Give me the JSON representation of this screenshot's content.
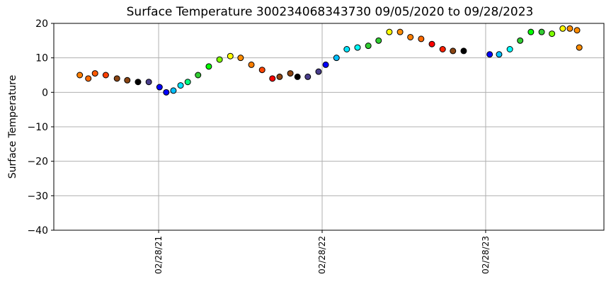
{
  "chart_data": {
    "type": "scatter",
    "title": "Surface Temperature 300234068343730  09/05/2020 to 09/28/2023",
    "y_label": "Surface Temperature",
    "xlim": [
      "2020-07-09",
      "2023-11-19"
    ],
    "xticks": [
      {
        "value": "2021-02-28",
        "label": "02/28/21"
      },
      {
        "value": "2022-02-28",
        "label": "02/28/22"
      },
      {
        "value": "2023-02-28",
        "label": "02/28/23"
      }
    ],
    "ylim": [
      -40,
      20
    ],
    "yticks": [
      {
        "value": -40,
        "label": "−40"
      },
      {
        "value": -30,
        "label": "−30"
      },
      {
        "value": -20,
        "label": "−20"
      },
      {
        "value": -10,
        "label": "−10"
      },
      0,
      10,
      20
    ],
    "grid": true,
    "x": [
      "2020-09-05",
      "2020-09-24",
      "2020-10-09",
      "2020-11-02",
      "2020-11-27",
      "2020-12-20",
      "2021-01-13",
      "2021-02-06",
      "2021-03-02",
      "2021-03-17",
      "2021-04-02",
      "2021-04-18",
      "2021-05-04",
      "2021-05-27",
      "2021-06-20",
      "2021-07-14",
      "2021-08-07",
      "2021-08-30",
      "2021-09-23",
      "2021-10-17",
      "2021-11-09",
      "2021-11-25",
      "2021-12-19",
      "2022-01-04",
      "2022-01-27",
      "2022-02-20",
      "2022-03-08",
      "2022-04-01",
      "2022-04-24",
      "2022-05-18",
      "2022-06-11",
      "2022-07-04",
      "2022-07-28",
      "2022-08-21",
      "2022-09-13",
      "2022-10-07",
      "2022-10-31",
      "2022-11-24",
      "2022-12-17",
      "2023-01-10",
      "2023-03-09",
      "2023-03-30",
      "2023-04-23",
      "2023-05-16",
      "2023-06-09",
      "2023-07-03",
      "2023-07-26",
      "2023-08-19",
      "2023-09-04",
      "2023-09-20",
      "2023-09-25"
    ],
    "values": [
      5,
      4,
      5.5,
      5,
      4,
      3.5,
      3,
      3,
      1.5,
      0,
      0.5,
      2,
      3,
      5,
      7.5,
      9.5,
      10.5,
      10,
      8,
      6.5,
      4,
      4.5,
      5.5,
      4.5,
      4.5,
      6,
      8,
      10,
      12.5,
      13,
      13.5,
      15,
      17.5,
      17.5,
      16,
      15.5,
      14,
      12.5,
      12,
      12,
      11,
      11,
      12.5,
      15,
      17.5,
      17.5,
      17,
      18.5,
      18.5,
      18,
      13
    ],
    "colors": [
      "#ff7f00",
      "#ff6a00",
      "#ff5a00",
      "#ff4000",
      "#8b4513",
      "#8b4513",
      "#000000",
      "#483d8b",
      "#0000ff",
      "#0000ff",
      "#00bfff",
      "#00e5ff",
      "#00ff7f",
      "#32cd32",
      "#00ff00",
      "#7fff00",
      "#ffff00",
      "#ff8c00",
      "#ff7f00",
      "#ff4500",
      "#ff0000",
      "#8b4513",
      "#8b4513",
      "#000000",
      "#483d8b",
      "#483d8b",
      "#0000ff",
      "#00bfff",
      "#00e5ff",
      "#00ffff",
      "#32cd32",
      "#32cd32",
      "#ffff00",
      "#ff8c00",
      "#ff7f00",
      "#ff6a00",
      "#ff0000",
      "#ff2000",
      "#8b4513",
      "#000000",
      "#0000ff",
      "#00bfff",
      "#00ffff",
      "#32cd32",
      "#00ff00",
      "#32cd32",
      "#7fff00",
      "#ffff00",
      "#ff8c00",
      "#ff8c00",
      "#ff8c00"
    ]
  }
}
